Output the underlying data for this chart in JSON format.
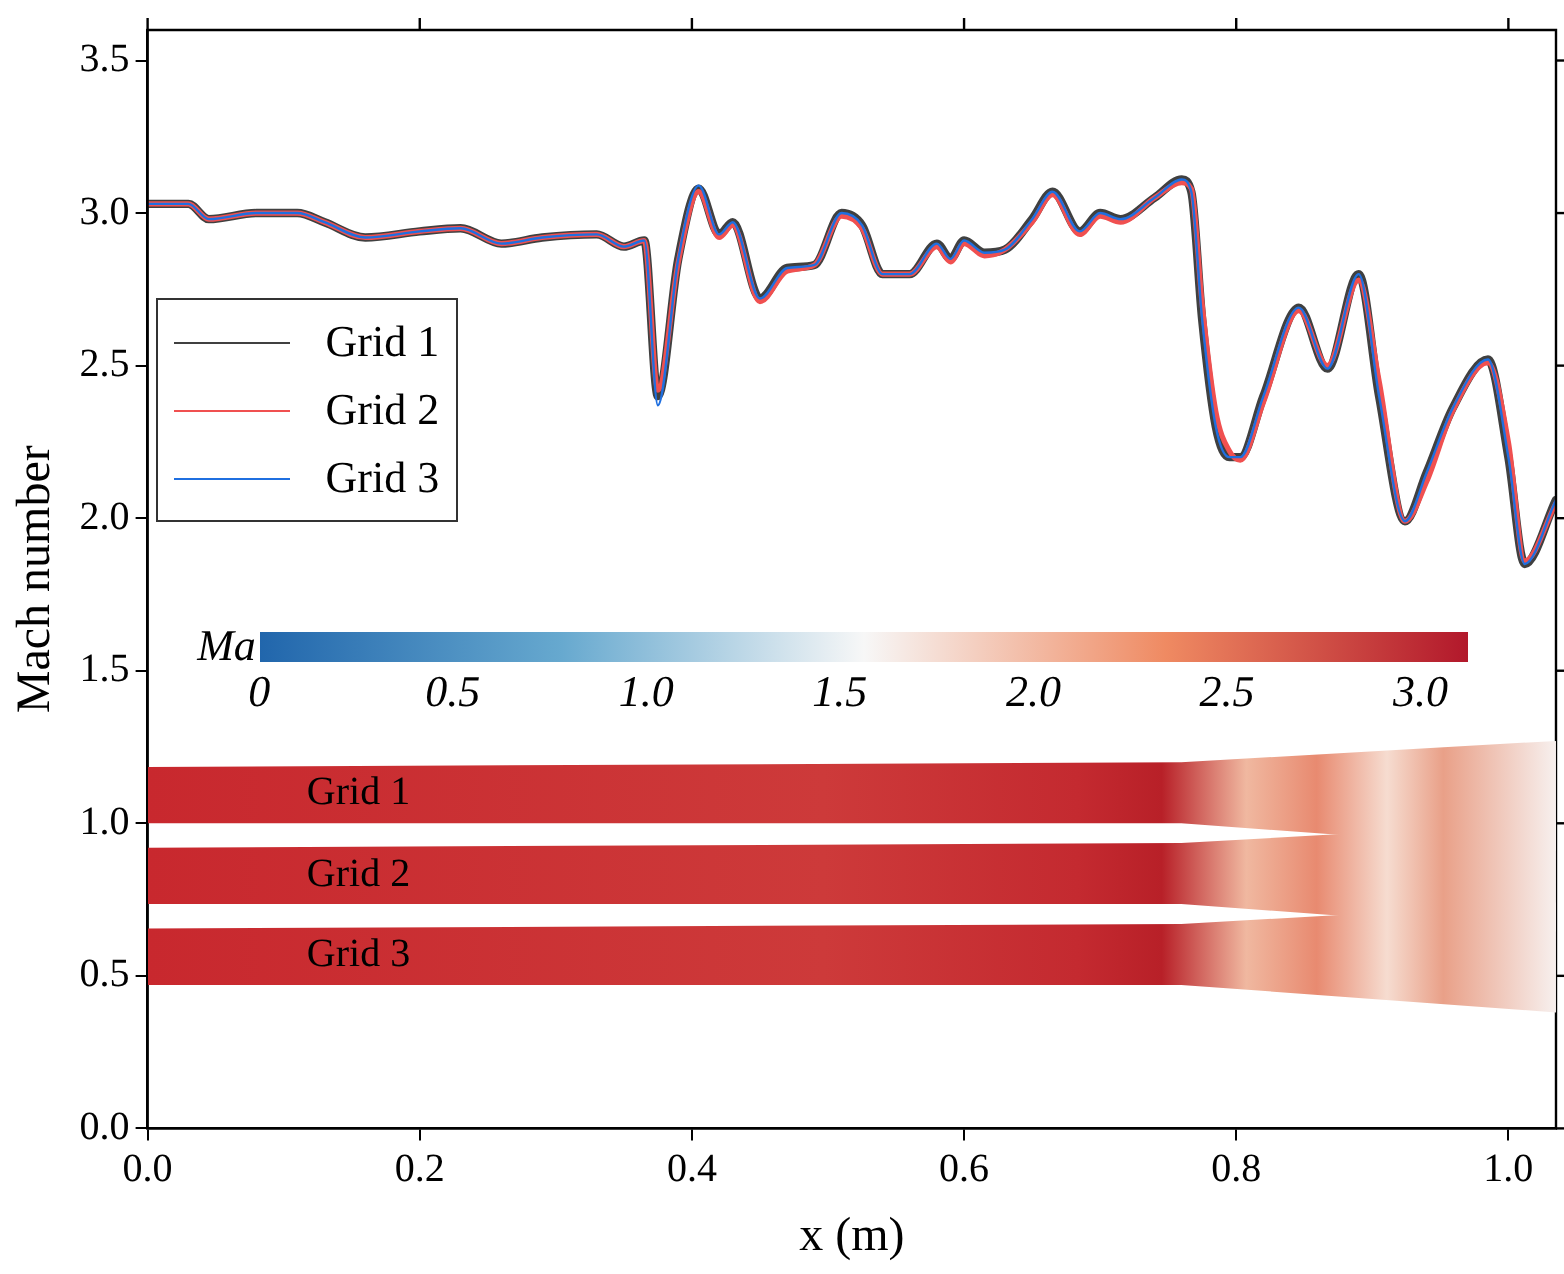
{
  "chart_data": {
    "type": "line",
    "xlabel": "x (m)",
    "ylabel": "Mach number",
    "xlim": [
      0,
      1.035
    ],
    "xticks": [
      {
        "value": 0,
        "label": "0.0"
      },
      0.2,
      0.4,
      0.6,
      0.8,
      {
        "value": 1,
        "label": "1.0"
      }
    ],
    "ylim": [
      0,
      3.6
    ],
    "yticks": [
      {
        "value": 0,
        "label": "0.0"
      },
      0.5,
      {
        "value": 1,
        "label": "1.0"
      },
      1.5,
      {
        "value": 2,
        "label": "2.0"
      },
      2.5,
      {
        "value": 3,
        "label": "3.0"
      },
      3.5
    ],
    "grid": false,
    "legend": "top left",
    "marker": "none",
    "line_style": "solid",
    "x": [
      0,
      0.03,
      0.045,
      0.08,
      0.11,
      0.13,
      0.16,
      0.2,
      0.23,
      0.26,
      0.29,
      0.33,
      0.35,
      0.365,
      0.375,
      0.39,
      0.405,
      0.42,
      0.43,
      0.45,
      0.47,
      0.49,
      0.51,
      0.525,
      0.54,
      0.56,
      0.58,
      0.59,
      0.6,
      0.615,
      0.63,
      0.65,
      0.665,
      0.685,
      0.7,
      0.715,
      0.74,
      0.76,
      0.767,
      0.775,
      0.785,
      0.795,
      0.803,
      0.82,
      0.846,
      0.867,
      0.89,
      0.905,
      0.924,
      0.94,
      0.959,
      0.985,
      1.0,
      1.012,
      1.035
    ],
    "series": [
      {
        "name": "Grid 1",
        "color": "#404040",
        "values": [
          3.03,
          3.03,
          2.98,
          3.0,
          3.0,
          2.97,
          2.92,
          2.94,
          2.95,
          2.9,
          2.92,
          2.93,
          2.89,
          2.91,
          2.4,
          2.85,
          3.08,
          2.93,
          2.97,
          2.72,
          2.82,
          2.83,
          3.0,
          2.96,
          2.8,
          2.8,
          2.9,
          2.85,
          2.91,
          2.87,
          2.88,
          2.98,
          3.07,
          2.94,
          3.0,
          2.98,
          3.05,
          3.11,
          3.07,
          2.65,
          2.3,
          2.2,
          2.2,
          2.4,
          2.69,
          2.49,
          2.8,
          2.4,
          1.99,
          2.15,
          2.36,
          2.52,
          2.2,
          1.85,
          2.06
        ]
      },
      {
        "name": "Grid 2",
        "color": "#f05050",
        "values": [
          3.03,
          3.03,
          2.98,
          3.0,
          3.0,
          2.97,
          2.92,
          2.94,
          2.95,
          2.9,
          2.92,
          2.93,
          2.89,
          2.91,
          2.42,
          2.84,
          3.07,
          2.92,
          2.96,
          2.71,
          2.81,
          2.83,
          2.99,
          2.95,
          2.8,
          2.8,
          2.89,
          2.84,
          2.9,
          2.86,
          2.88,
          2.97,
          3.06,
          2.93,
          2.99,
          2.97,
          3.05,
          3.1,
          3.08,
          2.7,
          2.35,
          2.22,
          2.19,
          2.38,
          2.68,
          2.5,
          2.78,
          2.45,
          1.99,
          2.12,
          2.35,
          2.51,
          2.25,
          1.86,
          2.05
        ]
      },
      {
        "name": "Grid 3",
        "color": "#1f6fe0",
        "values": [
          3.03,
          3.03,
          2.98,
          3.0,
          3.0,
          2.97,
          2.92,
          2.94,
          2.95,
          2.9,
          2.92,
          2.93,
          2.89,
          2.91,
          2.37,
          2.85,
          3.09,
          2.93,
          2.97,
          2.72,
          2.82,
          2.83,
          3.0,
          2.96,
          2.8,
          2.8,
          2.9,
          2.85,
          2.91,
          2.87,
          2.88,
          2.98,
          3.07,
          2.94,
          3.0,
          2.98,
          3.05,
          3.11,
          3.07,
          2.65,
          2.3,
          2.2,
          2.2,
          2.4,
          2.69,
          2.49,
          2.8,
          2.4,
          1.99,
          2.15,
          2.36,
          2.52,
          2.2,
          1.85,
          2.06
        ]
      }
    ],
    "annotations": [
      "Ma",
      "0",
      "0.5",
      "1.0",
      "1.5",
      "2.0",
      "2.5",
      "3.0",
      "Grid 1",
      "Grid 2",
      "Grid 3"
    ]
  }
}
